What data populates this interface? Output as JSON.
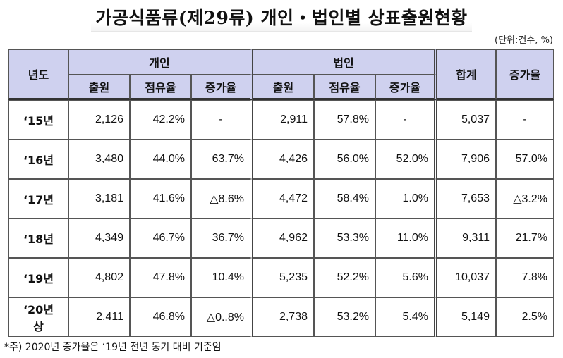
{
  "title": "가공식품류(제29류) 개인・법인별 상표출원현황",
  "unit": "(단위:건수, %)",
  "header": {
    "year": "년도",
    "individual": "개인",
    "corporate": "법인",
    "total": "합계",
    "growth": "증가율",
    "applications": "출원",
    "share": "점유율",
    "growth_rate": "증가율"
  },
  "rows": [
    {
      "year": "‘15년",
      "ind_app": "2,126",
      "ind_share": "42.2%",
      "ind_growth": "-",
      "corp_app": "2,911",
      "corp_share": "57.8%",
      "corp_growth": "-",
      "total": "5,037",
      "growth": "-"
    },
    {
      "year": "‘16년",
      "ind_app": "3,480",
      "ind_share": "44.0%",
      "ind_growth": "63.7%",
      "corp_app": "4,426",
      "corp_share": "56.0%",
      "corp_growth": "52.0%",
      "total": "7,906",
      "growth": "57.0%"
    },
    {
      "year": "‘17년",
      "ind_app": "3,181",
      "ind_share": "41.6%",
      "ind_growth": "△8.6%",
      "corp_app": "4,472",
      "corp_share": "58.4%",
      "corp_growth": "1.0%",
      "total": "7,653",
      "growth": "△3.2%"
    },
    {
      "year": "‘18년",
      "ind_app": "4,349",
      "ind_share": "46.7%",
      "ind_growth": "36.7%",
      "corp_app": "4,962",
      "corp_share": "53.3%",
      "corp_growth": "11.0%",
      "total": "9,311",
      "growth": "21.7%"
    },
    {
      "year": "‘19년",
      "ind_app": "4,802",
      "ind_share": "47.8%",
      "ind_growth": "10.4%",
      "corp_app": "5,235",
      "corp_share": "52.2%",
      "corp_growth": "5.6%",
      "total": "10,037",
      "growth": "7.8%"
    },
    {
      "year": "‘20년\n상",
      "ind_app": "2,411",
      "ind_share": "46.8%",
      "ind_growth": "△0..8%",
      "corp_app": "2,738",
      "corp_share": "53.2%",
      "corp_growth": "5.4%",
      "total": "5,149",
      "growth": "2.5%"
    }
  ],
  "footnote": "*주) 2020년 증가율은 ‘19년 전년 동기 대비 기준임"
}
